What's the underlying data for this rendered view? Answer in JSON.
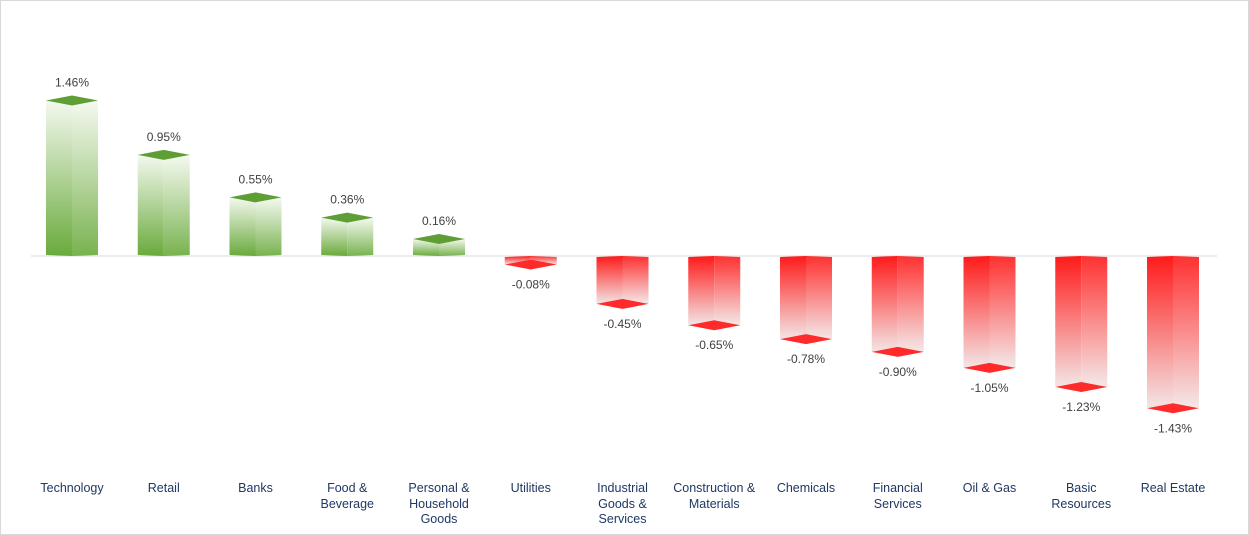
{
  "chart_data": {
    "type": "bar",
    "title": "",
    "xlabel": "",
    "ylabel": "",
    "ylim": [
      -1.6,
      1.6
    ],
    "value_suffix": "%",
    "categories": [
      [
        "Technology"
      ],
      [
        "Retail"
      ],
      [
        "Banks"
      ],
      [
        "Food &",
        "Beverage"
      ],
      [
        "Personal &",
        "Household",
        "Goods"
      ],
      [
        "Utilities"
      ],
      [
        "Industrial",
        "Goods &",
        "Services"
      ],
      [
        "Construction &",
        "Materials"
      ],
      [
        "Chemicals"
      ],
      [
        "Financial",
        "Services"
      ],
      [
        "Oil & Gas"
      ],
      [
        "Basic",
        "Resources"
      ],
      [
        "Real Estate"
      ]
    ],
    "values": [
      1.46,
      0.95,
      0.55,
      0.36,
      0.16,
      -0.08,
      -0.45,
      -0.65,
      -0.78,
      -0.9,
      -1.05,
      -1.23,
      -1.43
    ],
    "value_labels": [
      "1.46%",
      "0.95%",
      "0.55%",
      "0.36%",
      "0.16%",
      "-0.08%",
      "-0.45%",
      "-0.65%",
      "-0.78%",
      "-0.90%",
      "-1.05%",
      "-1.23%",
      "-1.43%"
    ],
    "colors": {
      "positive_dark": "#6aaa3c",
      "positive_light": "#f4f9ef",
      "positive_top": "#5e9e34",
      "negative_dark": "#ff1a1a",
      "negative_light": "#f3e6e6",
      "negative_cap": "#ff2a2a",
      "axis": "#d9d9d9",
      "label": "#404040",
      "category": "#1f3864"
    }
  }
}
